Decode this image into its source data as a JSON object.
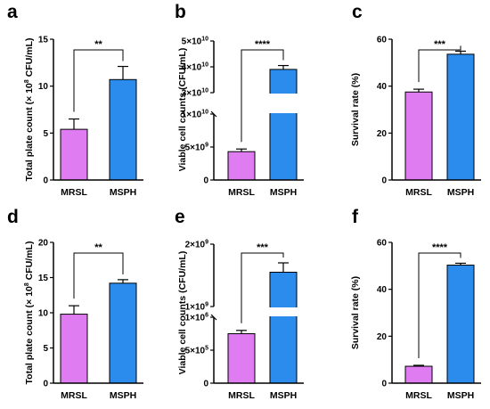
{
  "colors": {
    "MRSL": "#e07cf1",
    "MSPH": "#2b8ced",
    "axis": "#000000"
  },
  "chart_data": [
    {
      "panel": "a",
      "type": "bar",
      "categories": [
        "MRSL",
        "MSPH"
      ],
      "values": [
        5.4,
        10.7
      ],
      "errors": [
        1.1,
        1.4
      ],
      "ylabel": "Total plate count (× 10⁸ CFU/mL)",
      "ylim": [
        0,
        15
      ],
      "yticks": [
        0,
        5,
        10,
        15
      ],
      "ytick_labels": [
        "0",
        "5",
        "10",
        "15"
      ],
      "significance": "**"
    },
    {
      "panel": "b",
      "type": "bar",
      "categories": [
        "MRSL",
        "MSPH"
      ],
      "values": [
        4300000000.0,
        39000000000.0
      ],
      "errors": [
        400000000.0,
        1500000000.0
      ],
      "ylabel": "Viable cell counts (CFU/mL)",
      "axis_break": true,
      "ytick_labels": [
        "0",
        "5×10⁹",
        "1×10¹⁰",
        "3×10¹⁰",
        "4×10¹⁰",
        "5×10¹⁰"
      ],
      "significance": "****"
    },
    {
      "panel": "c",
      "type": "bar",
      "categories": [
        "MRSL",
        "MSPH"
      ],
      "values": [
        37.5,
        53.6
      ],
      "errors": [
        1.2,
        1.3
      ],
      "ylabel": "Survival rate (%)",
      "ylim": [
        0,
        60
      ],
      "yticks": [
        0,
        20,
        40,
        60
      ],
      "ytick_labels": [
        "0",
        "20",
        "40",
        "60"
      ],
      "significance": "***"
    },
    {
      "panel": "d",
      "type": "bar",
      "categories": [
        "MRSL",
        "MSPH"
      ],
      "values": [
        9.8,
        14.2
      ],
      "errors": [
        1.2,
        0.5
      ],
      "ylabel": "Total plate count (× 10⁸ CFU/mL)",
      "ylim": [
        0,
        20
      ],
      "yticks": [
        0,
        5,
        10,
        15,
        20
      ],
      "ytick_labels": [
        "0",
        "5",
        "10",
        "15",
        "20"
      ],
      "significance": "**"
    },
    {
      "panel": "e",
      "type": "bar",
      "categories": [
        "MRSL",
        "MSPH"
      ],
      "values": [
        750000.0,
        1550000000.0
      ],
      "errors": [
        50000.0,
        150000000.0
      ],
      "ylabel": "Viable cell counts (CFU/mL)",
      "axis_break": true,
      "ytick_labels": [
        "0",
        "5×10⁵",
        "1×10⁶",
        "1×10⁹",
        "2×10⁹"
      ],
      "significance": "***"
    },
    {
      "panel": "f",
      "type": "bar",
      "categories": [
        "MRSL",
        "MSPH"
      ],
      "values": [
        7.2,
        50.3
      ],
      "errors": [
        0.4,
        0.8
      ],
      "ylabel": "Survival rate (%)",
      "ylim": [
        0,
        60
      ],
      "yticks": [
        0,
        20,
        40,
        60
      ],
      "ytick_labels": [
        "0",
        "20",
        "40",
        "60"
      ],
      "significance": "****"
    }
  ]
}
